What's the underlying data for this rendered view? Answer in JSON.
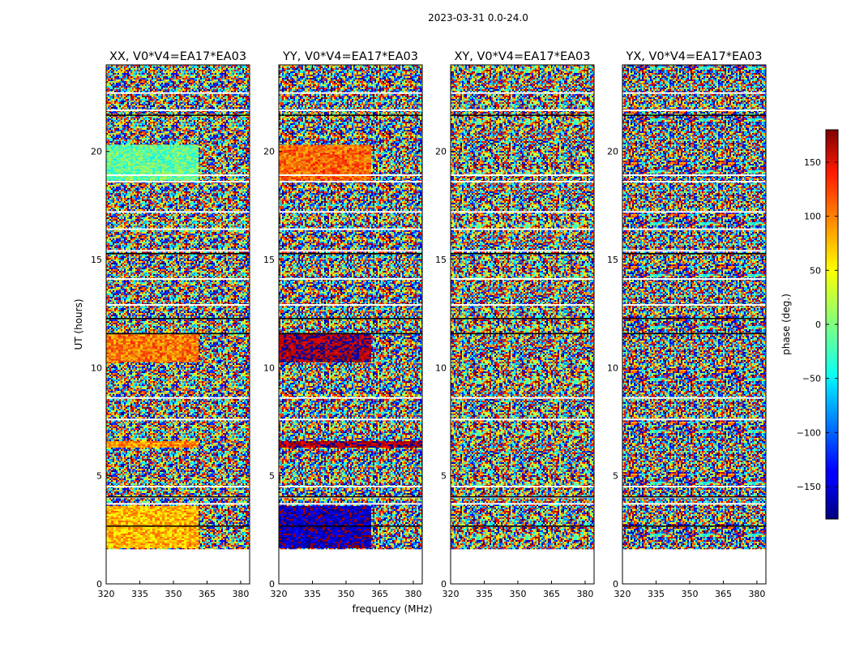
{
  "figure": {
    "suptitle": "2023-03-31 0.0-24.0",
    "xlabel": "frequency (MHz)",
    "ylabel": "UT (hours)",
    "colorbar_label": "phase (deg.)"
  },
  "chart_data": [
    {
      "type": "heatmap",
      "title": "XX, V0*V4=EA17*EA03",
      "polarization": "XX",
      "xlim": [
        320,
        384
      ],
      "ylim": [
        0,
        24
      ],
      "xticks": [
        320,
        335,
        350,
        365,
        380
      ],
      "yticks": [
        0,
        5,
        10,
        15,
        20
      ],
      "data_time_range_hours": [
        1.6,
        24.0
      ],
      "coherent_segments": [
        {
          "ut_start": 1.7,
          "ut_end": 3.6,
          "freq_max_mhz": 361,
          "phase_deg": 70
        },
        {
          "ut_start": 6.3,
          "ut_end": 6.6,
          "freq_max_mhz": 361,
          "phase_deg": 85
        },
        {
          "ut_start": 10.3,
          "ut_end": 11.6,
          "freq_max_mhz": 361,
          "phase_deg": 90
        },
        {
          "ut_start": 18.7,
          "ut_end": 20.3,
          "freq_max_mhz": 361,
          "phase_deg": -10
        }
      ]
    },
    {
      "type": "heatmap",
      "title": "YY, V0*V4=EA17*EA03",
      "polarization": "YY",
      "xlim": [
        320,
        384
      ],
      "ylim": [
        0,
        24
      ],
      "xticks": [
        320,
        335,
        350,
        365,
        380
      ],
      "yticks": [
        0,
        5,
        10,
        15,
        20
      ],
      "data_time_range_hours": [
        1.6,
        24.0
      ],
      "coherent_segments": [
        {
          "ut_start": 1.7,
          "ut_end": 3.6,
          "freq_max_mhz": 361,
          "phase_deg": -160
        },
        {
          "ut_start": 6.3,
          "ut_end": 6.6,
          "freq_max_mhz": 384,
          "phase_deg": 165
        },
        {
          "ut_start": 10.3,
          "ut_end": 11.6,
          "freq_max_mhz": 361,
          "phase_deg": 170
        },
        {
          "ut_start": 18.7,
          "ut_end": 20.3,
          "freq_max_mhz": 361,
          "phase_deg": 100
        }
      ]
    },
    {
      "type": "heatmap",
      "title": "XY, V0*V4=EA17*EA03",
      "polarization": "XY",
      "xlim": [
        320,
        384
      ],
      "ylim": [
        0,
        24
      ],
      "xticks": [
        320,
        335,
        350,
        365,
        380
      ],
      "yticks": [
        0,
        5,
        10,
        15,
        20
      ],
      "data_time_range_hours": [
        1.6,
        24.0
      ],
      "coherent_segments": []
    },
    {
      "type": "heatmap",
      "title": "YX, V0*V4=EA17*EA03",
      "polarization": "YX",
      "xlim": [
        320,
        384
      ],
      "ylim": [
        0,
        24
      ],
      "xticks": [
        320,
        335,
        350,
        365,
        380
      ],
      "yticks": [
        0,
        5,
        10,
        15,
        20
      ],
      "data_time_range_hours": [
        1.6,
        24.0
      ],
      "coherent_segments": []
    }
  ],
  "colorbar": {
    "type": "colorbar",
    "colormap": "jet",
    "range": [
      -180,
      180
    ],
    "ticks": [
      -150,
      -100,
      -50,
      0,
      50,
      100,
      150
    ]
  },
  "flagged_gaps_ut_hours": [
    3.7,
    4.0,
    4.5,
    7.6,
    8.6,
    12.9,
    14.1,
    15.4,
    16.4,
    17.2,
    18.6,
    18.9,
    21.9,
    22.7
  ]
}
